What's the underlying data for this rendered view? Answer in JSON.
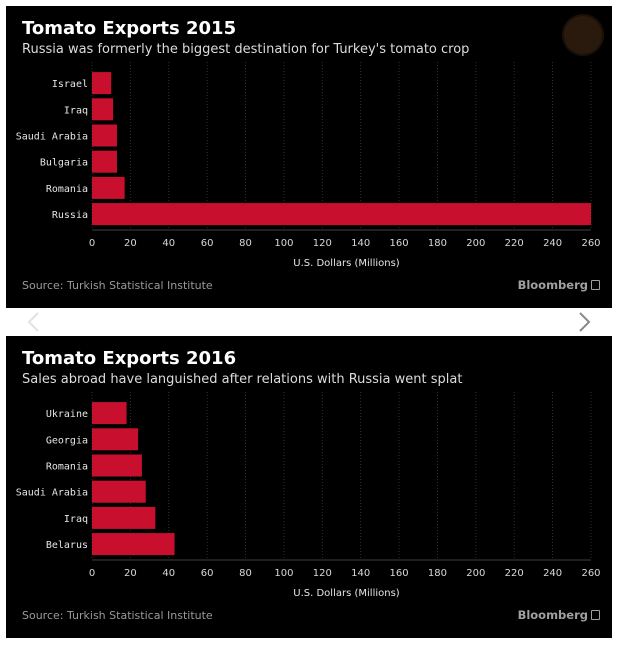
{
  "charts": [
    {
      "title": "Tomato Exports 2015",
      "subtitle": "Russia was formerly the biggest destination for Turkey's tomato crop",
      "source": "Source: Turkish Statistical Institute",
      "brand": "Bloomberg"
    },
    {
      "title": "Tomato Exports 2016",
      "subtitle": "Sales abroad have languished after relations with Russia went splat",
      "source": "Source: Turkish Statistical Institute",
      "brand": "Bloomberg"
    }
  ],
  "colors": {
    "bar": "#c8102e",
    "background": "#000000",
    "grid": "#3a3a3a",
    "text": "#ffffff",
    "muted": "#9a9a9a"
  },
  "icons": [
    "prev-arrow-icon",
    "next-arrow-icon",
    "bloomberg-logo-icon"
  ],
  "chart_data": [
    {
      "type": "bar",
      "orientation": "horizontal",
      "title": "Tomato Exports 2015",
      "subtitle": "Russia was formerly the biggest destination for Turkey's tomato crop",
      "categories": [
        "Israel",
        "Iraq",
        "Saudi Arabia",
        "Bulgaria",
        "Romania",
        "Russia"
      ],
      "values": [
        10,
        11,
        13,
        13,
        17,
        260
      ],
      "xlabel": "U.S. Dollars (Millions)",
      "ylabel": "",
      "xlim": [
        0,
        260
      ],
      "xticks": [
        0,
        20,
        40,
        60,
        80,
        100,
        120,
        140,
        160,
        180,
        200,
        220,
        240,
        260
      ],
      "grid": true
    },
    {
      "type": "bar",
      "orientation": "horizontal",
      "title": "Tomato Exports 2016",
      "subtitle": "Sales abroad have languished after relations with Russia went splat",
      "categories": [
        "Ukraine",
        "Georgia",
        "Romania",
        "Saudi Arabia",
        "Iraq",
        "Belarus"
      ],
      "values": [
        18,
        24,
        26,
        28,
        33,
        43
      ],
      "xlabel": "U.S. Dollars (Millions)",
      "ylabel": "",
      "xlim": [
        0,
        260
      ],
      "xticks": [
        0,
        20,
        40,
        60,
        80,
        100,
        120,
        140,
        160,
        180,
        200,
        220,
        240,
        260
      ],
      "grid": true
    }
  ]
}
